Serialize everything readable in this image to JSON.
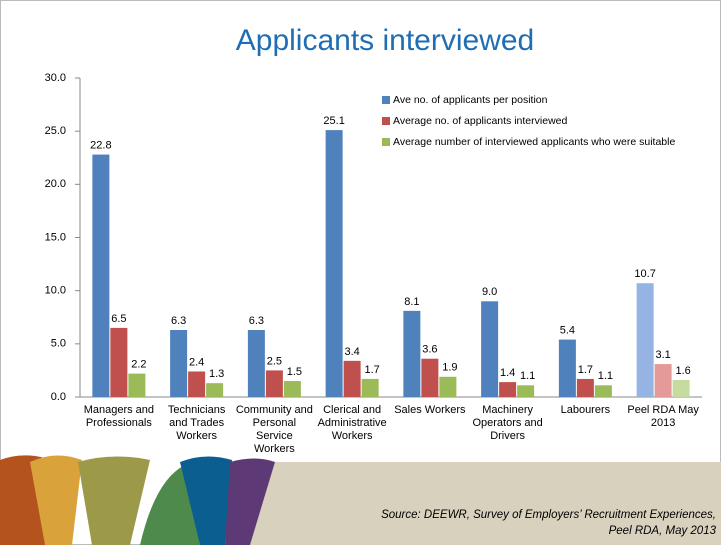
{
  "chart_data": {
    "type": "bar",
    "title": "Applicants interviewed",
    "categories": [
      "Managers and Professionals",
      "Technicians and Trades Workers",
      "Community and Personal Service Workers",
      "Clerical and Administrative Workers",
      "Sales Workers",
      "Machinery Operators and Drivers",
      "Labourers",
      "Peel RDA May 2013"
    ],
    "series": [
      {
        "name": "Ave no. of applicants per position",
        "color": "#4f81bd",
        "colors": [
          "#4f81bd",
          "#4f81bd",
          "#4f81bd",
          "#4f81bd",
          "#4f81bd",
          "#4f81bd",
          "#4f81bd",
          "#95b3e3"
        ],
        "values": [
          22.8,
          6.3,
          6.3,
          25.1,
          8.1,
          9.0,
          5.4,
          10.7
        ],
        "value_labels": [
          "22.8",
          "6.3",
          "6.3",
          "25.1",
          "8.1",
          "9.0",
          "5.4",
          "10.7"
        ]
      },
      {
        "name": "Average no. of applicants interviewed",
        "color": "#c0504d",
        "colors": [
          "#c0504d",
          "#c0504d",
          "#c0504d",
          "#c0504d",
          "#c0504d",
          "#c0504d",
          "#c0504d",
          "#e39a98"
        ],
        "values": [
          6.5,
          2.4,
          2.5,
          3.4,
          3.6,
          1.4,
          1.7,
          3.1
        ],
        "value_labels": [
          "6.5",
          "2.4",
          "2.5",
          "3.4",
          "3.6",
          "1.4",
          "1.7",
          "3.1"
        ]
      },
      {
        "name": "Average number of interviewed applicants who were suitable",
        "color": "#9bbb59",
        "colors": [
          "#9bbb59",
          "#9bbb59",
          "#9bbb59",
          "#9bbb59",
          "#9bbb59",
          "#9bbb59",
          "#9bbb59",
          "#c6dba0"
        ],
        "values": [
          2.2,
          1.3,
          1.5,
          1.7,
          1.9,
          1.1,
          1.1,
          1.6
        ],
        "value_labels": [
          "2.2",
          "1.3",
          "1.5",
          "1.7",
          "1.9",
          "1.1",
          "1.1",
          "1.6"
        ]
      }
    ],
    "ylim": [
      0,
      30
    ],
    "yticks": [
      {
        "value": 0,
        "label": "0.0"
      },
      {
        "value": 5,
        "label": "5.0"
      },
      {
        "value": 10,
        "label": "10.0"
      },
      {
        "value": 15,
        "label": "15.0"
      },
      {
        "value": 20,
        "label": "20.0"
      },
      {
        "value": 25,
        "label": "25.0"
      },
      {
        "value": 30,
        "label": "30.0"
      }
    ],
    "legend": "top-right",
    "source": [
      "Source:  DEEWR, Survey of Employers’ Recruitment Experiences,",
      "Peel RDA, May 2013"
    ]
  }
}
